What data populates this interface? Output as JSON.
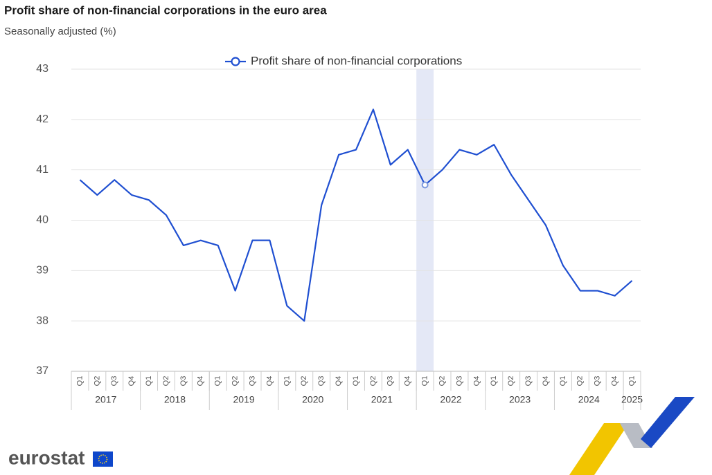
{
  "chart_data": {
    "type": "line",
    "title": "Profit share of non-financial corporations in the euro area",
    "subtitle": "Seasonally adjusted (%)",
    "categories": [
      "Q1",
      "Q2",
      "Q3",
      "Q4",
      "Q1",
      "Q2",
      "Q3",
      "Q4",
      "Q1",
      "Q2",
      "Q3",
      "Q4",
      "Q1",
      "Q2",
      "Q3",
      "Q4",
      "Q1",
      "Q2",
      "Q3",
      "Q4",
      "Q1",
      "Q2",
      "Q3",
      "Q4",
      "Q1",
      "Q2",
      "Q3",
      "Q4",
      "Q1",
      "Q2",
      "Q3",
      "Q4",
      "Q1"
    ],
    "x_groups": [
      "2017",
      "2018",
      "2019",
      "2020",
      "2021",
      "2022",
      "2023",
      "2024",
      "2025"
    ],
    "series": [
      {
        "name": "Profit share of non-financial corporations",
        "color": "#1f4fd1",
        "values": [
          40.8,
          40.5,
          40.8,
          40.5,
          40.4,
          40.1,
          39.5,
          39.6,
          39.5,
          38.6,
          39.6,
          39.6,
          38.3,
          38.0,
          40.3,
          41.3,
          41.4,
          42.2,
          41.1,
          41.4,
          40.7,
          41.0,
          41.4,
          41.3,
          41.5,
          40.9,
          40.4,
          39.9,
          39.1,
          38.6,
          38.6,
          38.5,
          38.8
        ]
      }
    ],
    "ylim": [
      37,
      43
    ],
    "yticks": [
      37,
      38,
      39,
      40,
      41,
      42,
      43
    ],
    "grid": true,
    "legend": "top"
  },
  "logo": "eurostat"
}
